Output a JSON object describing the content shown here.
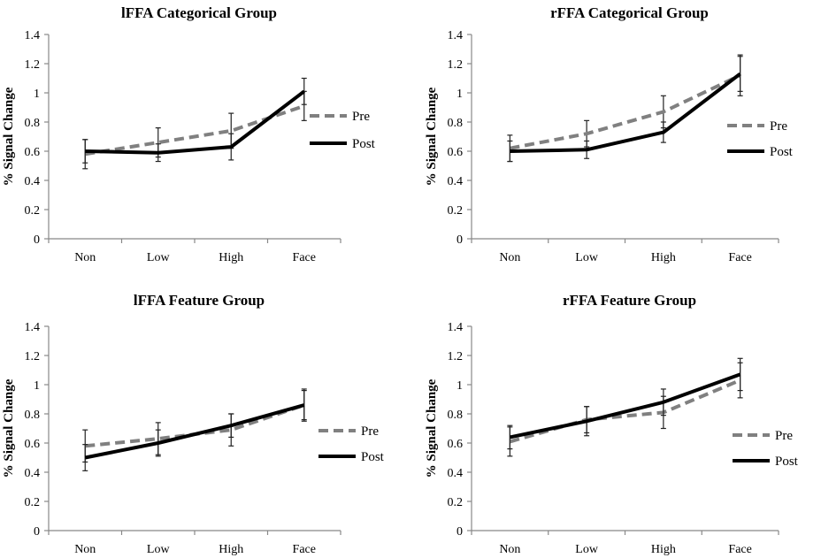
{
  "chart_data": [
    {
      "type": "line",
      "title": "lFFA Categorical Group",
      "ylabel": "% Signal Change",
      "categories": [
        "Non",
        "Low",
        "High",
        "Face"
      ],
      "yticks": [
        "0",
        "0.2",
        "0.4",
        "0.6",
        "0.8",
        "1",
        "1.2",
        "1.4"
      ],
      "ylim": [
        0,
        1.4
      ],
      "legend_position": "right",
      "series": [
        {
          "name": "Pre",
          "style": "dashed",
          "color": "#808080",
          "values": [
            0.58,
            0.66,
            0.74,
            0.91
          ],
          "err": [
            0.1,
            0.1,
            0.12,
            0.1
          ]
        },
        {
          "name": "Post",
          "style": "solid",
          "color": "#000000",
          "values": [
            0.6,
            0.59,
            0.63,
            1.01
          ],
          "err": [
            0.08,
            0.06,
            0.09,
            0.09
          ]
        }
      ]
    },
    {
      "type": "line",
      "title": "rFFA Categorical Group",
      "ylabel": "% Signal Change",
      "categories": [
        "Non",
        "Low",
        "High",
        "Face"
      ],
      "yticks": [
        "0",
        "0.2",
        "0.4",
        "0.6",
        "0.8",
        "1",
        "1.2",
        "1.4"
      ],
      "ylim": [
        0,
        1.4
      ],
      "legend_position": "right",
      "series": [
        {
          "name": "Pre",
          "style": "dashed",
          "color": "#808080",
          "values": [
            0.62,
            0.72,
            0.87,
            1.12
          ],
          "err": [
            0.09,
            0.09,
            0.11,
            0.14
          ]
        },
        {
          "name": "Post",
          "style": "solid",
          "color": "#000000",
          "values": [
            0.6,
            0.61,
            0.73,
            1.13
          ],
          "err": [
            0.07,
            0.06,
            0.07,
            0.12
          ]
        }
      ]
    },
    {
      "type": "line",
      "title": "lFFA Feature Group",
      "ylabel": "% Signal Change",
      "categories": [
        "Non",
        "Low",
        "High",
        "Face"
      ],
      "yticks": [
        "0",
        "0.2",
        "0.4",
        "0.6",
        "0.8",
        "1",
        "1.2",
        "1.4"
      ],
      "ylim": [
        0,
        1.4
      ],
      "legend_position": "right",
      "series": [
        {
          "name": "Pre",
          "style": "dashed",
          "color": "#808080",
          "values": [
            0.58,
            0.63,
            0.69,
            0.86
          ],
          "err": [
            0.11,
            0.11,
            0.11,
            0.11
          ]
        },
        {
          "name": "Post",
          "style": "solid",
          "color": "#000000",
          "values": [
            0.5,
            0.6,
            0.72,
            0.86
          ],
          "err": [
            0.09,
            0.09,
            0.08,
            0.1
          ]
        }
      ]
    },
    {
      "type": "line",
      "title": "rFFA Feature Group",
      "ylabel": "% Signal Change",
      "categories": [
        "Non",
        "Low",
        "High",
        "Face"
      ],
      "yticks": [
        "0",
        "0.2",
        "0.4",
        "0.6",
        "0.8",
        "1",
        "1.2",
        "1.4"
      ],
      "ylim": [
        0,
        1.4
      ],
      "legend_position": "right",
      "series": [
        {
          "name": "Pre",
          "style": "dashed",
          "color": "#808080",
          "values": [
            0.61,
            0.76,
            0.81,
            1.03
          ],
          "err": [
            0.1,
            0.09,
            0.11,
            0.12
          ]
        },
        {
          "name": "Post",
          "style": "solid",
          "color": "#000000",
          "values": [
            0.64,
            0.75,
            0.88,
            1.07
          ],
          "err": [
            0.08,
            0.1,
            0.09,
            0.11
          ]
        }
      ]
    }
  ]
}
